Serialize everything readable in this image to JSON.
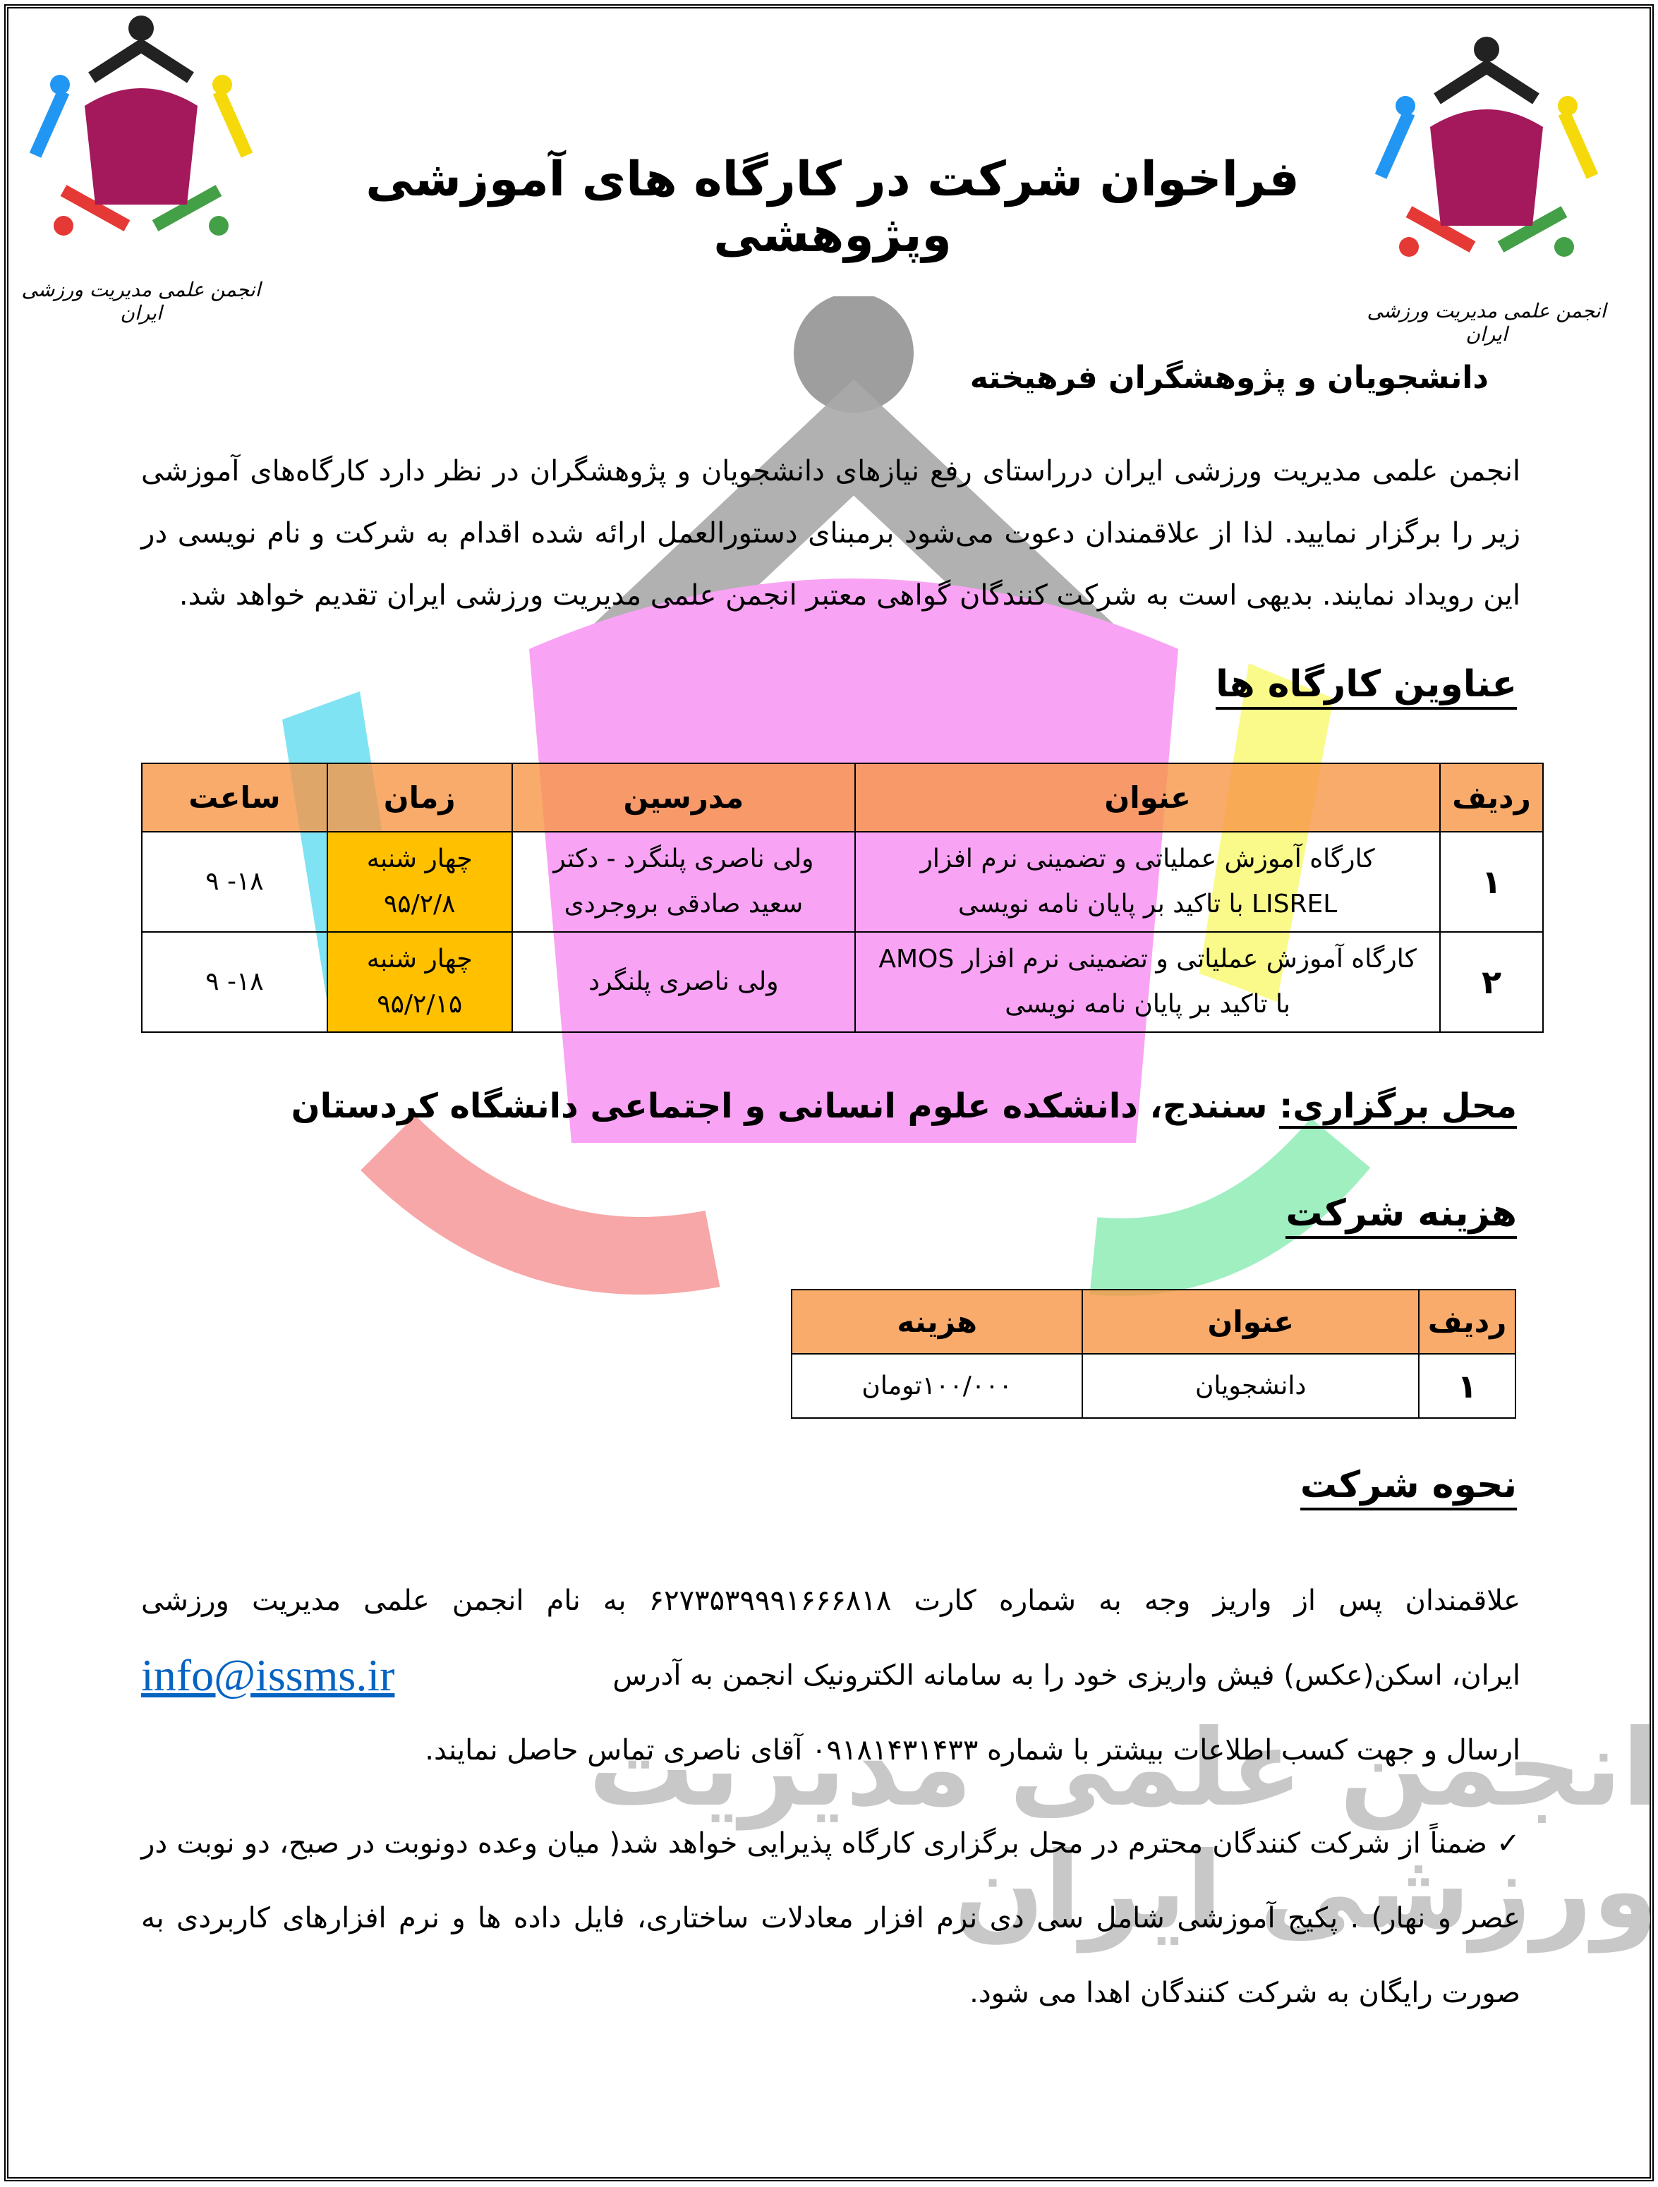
{
  "logo": {
    "caption": "انجمن علمی مدیریت ورزشی ایران"
  },
  "title": "فراخوان شرکت در کارگاه های آموزشی وپژوهشی",
  "greeting": "دانشجویان و پژوهشگران فرهیخته",
  "intro": "انجمن علمی مدیریت ورزشی ایران درراستای رفع نیازهای دانشجویان و پژوهشگران در نظر دارد کارگاه‌های آموزشی زیر را برگزار نمایید. لذا از علاقمندان دعوت می‌شود برمبنای دستورالعمل ارائه شده اقدام به شرکت و نام نویسی در این رویداد نمایند. بدیهی است به شرکت کنندگان گواهی معتبر انجمن علمی مدیریت ورزشی ایران تقدیم خواهد شد.",
  "workshops": {
    "heading": "عناوین کارگاه ها",
    "columns": [
      "ردیف",
      "عنوان",
      "مدرسین",
      "زمان",
      "ساعت"
    ],
    "rows": [
      {
        "no": "۱",
        "title": "کارگاه آموزش عملیاتی و تضمینی نرم افزار LISREL با تاکید بر پایان نامه نویسی",
        "teachers": "ولی ناصری پلنگرد - دکتر سعید صادقی بروجردی",
        "day": "چهار شنبه",
        "date": "۹۵/۲/۸",
        "hours": "۱۸- ۹"
      },
      {
        "no": "۲",
        "title": "کارگاه آموزش عملیاتی و تضمینی نرم افزار AMOS با تاکید بر پایان نامه نویسی",
        "teachers": "ولی ناصری پلنگرد",
        "day": "چهار شنبه",
        "date": "۹۵/۲/۱۵",
        "hours": "۱۸- ۹"
      }
    ]
  },
  "venue": {
    "label": "محل برگزاری:",
    "value": "سنندج، دانشکده علوم انسانی و اجتماعی دانشگاه کردستان"
  },
  "fees": {
    "heading": "هزینه شرکت",
    "columns": [
      "ردیف",
      "عنوان",
      "هزینه"
    ],
    "rows": [
      {
        "no": "۱",
        "title": "دانشجویان",
        "cost": "۱۰۰/۰۰۰تومان"
      }
    ]
  },
  "howto": {
    "heading": "نحوه شرکت",
    "line1": "علاقمندان پس از واریز وجه به شماره کارت ۶۲۷۳۵۳۹۹۹۱۶۶۶۸۱۸ به نام انجمن علمی مدیریت ورزشی",
    "line2": "ایران، اسکن(عکس) فیش واریزی خود را به سامانه الکترونیک انجمن به آدرس",
    "email": "info@issms.ir",
    "line3": "ارسال و جهت کسب اطلاعات بیشتر با شماره ۰۹۱۸۱۴۳۱۴۳۳  آقای ناصری تماس حاصل نمایند.",
    "note": "ضمناً از شرکت کنندگان محترم در محل برگزاری کارگاه پذیرایی خواهد شد( میان وعده دونوبت در صبح، دو نوبت در عصر و نهار) . پکیج آموزشی شامل سی دی نرم افزار معادلات ساختاری، فایل داده ها و نرم افزارهای کاربردی به صورت رایگان به شرکت کنندگان اهدا می شود."
  },
  "colors": {
    "header": "#f79646",
    "date_cell": "#ffc000",
    "link": "#0563c1",
    "logo_main": "#a3195b"
  }
}
